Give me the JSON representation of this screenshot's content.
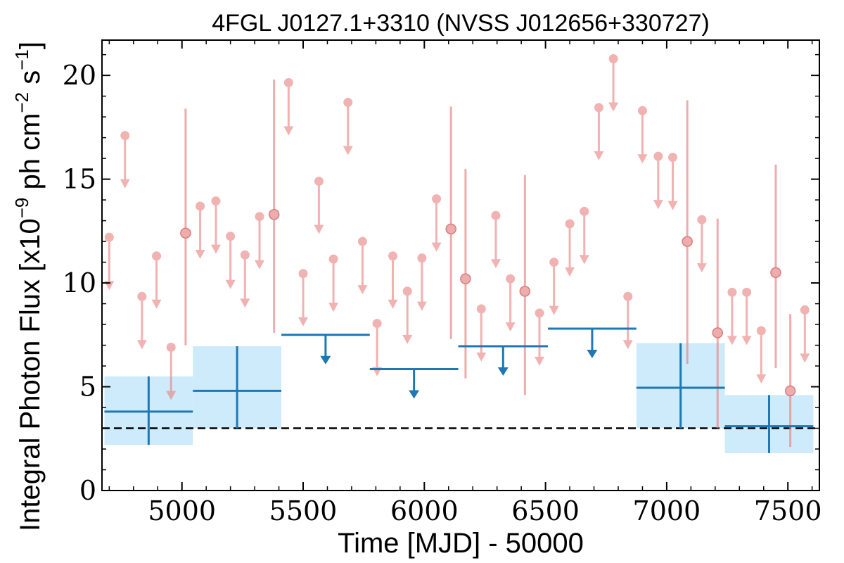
{
  "chart_data": {
    "type": "scatter",
    "title": "4FGL J0127.1+3310 (NVSS J012656+330727)",
    "xlabel": "Time [MJD] - 50000",
    "ylabel": "Integral Photon Flux [x10",
    "ylabel_exp": "−9",
    "ylabel_unit_a": " ph cm",
    "ylabel_unit_a_exp": "−2",
    "ylabel_unit_b": " s",
    "ylabel_unit_b_exp": "−1",
    "ylabel_close": "]",
    "xlim": [
      4670,
      7630
    ],
    "ylim": [
      0,
      21.7
    ],
    "xticks": [
      5000,
      5500,
      6000,
      6500,
      7000,
      7500
    ],
    "yticks": [
      0,
      5,
      10,
      15,
      20
    ],
    "xtick_labels": [
      "5000",
      "5500",
      "6000",
      "6500",
      "7000",
      "7500"
    ],
    "ytick_labels": [
      "0",
      "5",
      "10",
      "15",
      "20"
    ],
    "grid": false,
    "reference_line": {
      "y": 3.0,
      "style": "dashed",
      "color": "#000000"
    },
    "colors": {
      "long_bins": "#1f77b4",
      "long_bins_band": "#cdebfa",
      "short_bins": "#e88080"
    },
    "series": [
      {
        "role": "long-bin detections",
        "points": [
          {
            "x_start": 4680,
            "x_end": 5045,
            "y": 3.8,
            "y_low": 2.2,
            "y_high": 5.5
          },
          {
            "x_start": 5045,
            "x_end": 5410,
            "y": 4.8,
            "y_low": 3.0,
            "y_high": 6.95
          },
          {
            "x_start": 6875,
            "x_end": 7240,
            "y": 4.95,
            "y_low": 3.0,
            "y_high": 7.1
          },
          {
            "x_start": 7240,
            "x_end": 7605,
            "y": 3.1,
            "y_low": 1.8,
            "y_high": 4.6
          }
        ]
      },
      {
        "role": "long-bin upper limits",
        "points": [
          {
            "x_start": 5410,
            "x_end": 5775,
            "y": 7.5
          },
          {
            "x_start": 5775,
            "x_end": 6140,
            "y": 5.85
          },
          {
            "x_start": 6140,
            "x_end": 6510,
            "y": 6.95
          },
          {
            "x_start": 6510,
            "x_end": 6875,
            "y": 7.8
          }
        ]
      },
      {
        "role": "short-bin upper limits",
        "points": [
          {
            "x": 4700,
            "y": 12.2
          },
          {
            "x": 4765,
            "y": 17.1
          },
          {
            "x": 4835,
            "y": 9.35
          },
          {
            "x": 4895,
            "y": 11.3
          },
          {
            "x": 4955,
            "y": 6.9
          },
          {
            "x": 5075,
            "y": 13.7
          },
          {
            "x": 5140,
            "y": 13.95
          },
          {
            "x": 5200,
            "y": 12.25
          },
          {
            "x": 5260,
            "y": 11.35
          },
          {
            "x": 5320,
            "y": 13.2
          },
          {
            "x": 5440,
            "y": 19.65
          },
          {
            "x": 5500,
            "y": 10.45
          },
          {
            "x": 5565,
            "y": 14.9
          },
          {
            "x": 5625,
            "y": 11.15
          },
          {
            "x": 5685,
            "y": 18.7
          },
          {
            "x": 5745,
            "y": 12.0
          },
          {
            "x": 5805,
            "y": 8.05
          },
          {
            "x": 5870,
            "y": 11.3
          },
          {
            "x": 5930,
            "y": 9.6
          },
          {
            "x": 5990,
            "y": 11.2
          },
          {
            "x": 6050,
            "y": 14.05
          },
          {
            "x": 6235,
            "y": 8.75
          },
          {
            "x": 6295,
            "y": 13.25
          },
          {
            "x": 6355,
            "y": 10.2
          },
          {
            "x": 6475,
            "y": 8.55
          },
          {
            "x": 6535,
            "y": 11.0
          },
          {
            "x": 6600,
            "y": 12.85
          },
          {
            "x": 6660,
            "y": 13.45
          },
          {
            "x": 6720,
            "y": 18.45
          },
          {
            "x": 6780,
            "y": 20.8
          },
          {
            "x": 6840,
            "y": 9.35
          },
          {
            "x": 6900,
            "y": 18.3
          },
          {
            "x": 6965,
            "y": 16.1
          },
          {
            "x": 7025,
            "y": 16.05
          },
          {
            "x": 7145,
            "y": 13.05
          },
          {
            "x": 7270,
            "y": 9.55
          },
          {
            "x": 7330,
            "y": 9.55
          },
          {
            "x": 7390,
            "y": 7.7
          },
          {
            "x": 7570,
            "y": 8.7
          }
        ]
      },
      {
        "role": "short-bin detections",
        "points": [
          {
            "x": 5015,
            "y": 12.4,
            "y_low": 7.0,
            "y_high": 18.4
          },
          {
            "x": 5380,
            "y": 13.3,
            "y_low": 7.6,
            "y_high": 19.8
          },
          {
            "x": 6110,
            "y": 12.6,
            "y_low": 7.3,
            "y_high": 18.5
          },
          {
            "x": 6170,
            "y": 10.2,
            "y_low": 5.4,
            "y_high": 15.5
          },
          {
            "x": 6415,
            "y": 9.6,
            "y_low": 4.6,
            "y_high": 15.2
          },
          {
            "x": 7085,
            "y": 12.0,
            "y_low": 6.1,
            "y_high": 18.8
          },
          {
            "x": 7210,
            "y": 7.6,
            "y_low": 3.0,
            "y_high": 13.1
          },
          {
            "x": 7450,
            "y": 10.5,
            "y_low": 5.9,
            "y_high": 15.7
          },
          {
            "x": 7510,
            "y": 4.8,
            "y_low": 2.1,
            "y_high": 8.5
          }
        ]
      }
    ]
  }
}
